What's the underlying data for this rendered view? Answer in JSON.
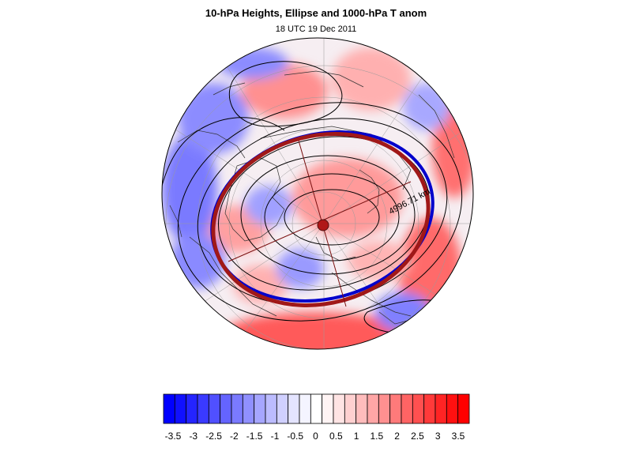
{
  "title": "10-hPa Heights, Ellipse and 1000-hPa T anom",
  "subtitle": "18 UTC 19 Dec 2011",
  "annotation": "4996.71 km",
  "colorbar": {
    "labels": [
      "-3.5",
      "-3",
      "-2.5",
      "-2",
      "-1.5",
      "-1",
      "-0.5",
      "0",
      "0.5",
      "1",
      "1.5",
      "2",
      "2.5",
      "3",
      "3.5"
    ],
    "colors": [
      "#0000ff",
      "#1010ff",
      "#2424ff",
      "#3a3aff",
      "#5050ff",
      "#6464ff",
      "#7a7aff",
      "#9090ff",
      "#a6a6ff",
      "#bcbcff",
      "#d0d0ff",
      "#e4e4ff",
      "#f4f4ff",
      "#ffffff",
      "#fff4f4",
      "#ffe4e4",
      "#ffd0d0",
      "#ffbcbc",
      "#ffa6a6",
      "#ff9090",
      "#ff7a7a",
      "#ff6464",
      "#ff5050",
      "#ff3a3a",
      "#ff2424",
      "#ff1010",
      "#ff0000"
    ]
  },
  "colors": {
    "ellipse_observed": "#0000cc",
    "ellipse_fit": "#a01818",
    "contour": "#000000",
    "anomaly_warm": "#ff6a6a",
    "anomaly_cold": "#6a6aff"
  }
}
